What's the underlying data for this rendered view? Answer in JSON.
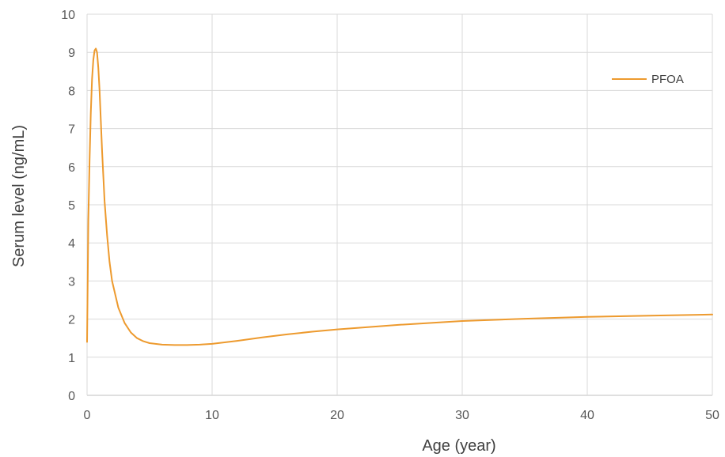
{
  "chart_data": {
    "type": "line",
    "xlabel": "Age (year)",
    "ylabel": "Serum level (ng/mL)",
    "xlim": [
      0,
      50
    ],
    "ylim": [
      0,
      10
    ],
    "x_ticks": [
      "0",
      "10",
      "20",
      "30",
      "40",
      "50"
    ],
    "y_ticks": [
      "0",
      "1",
      "2",
      "3",
      "4",
      "5",
      "6",
      "7",
      "8",
      "9",
      "10"
    ],
    "grid": true,
    "legend_position": "top-right",
    "series": [
      {
        "name": "PFOA",
        "color": "#ED9A2E",
        "x": [
          0,
          0.05,
          0.1,
          0.2,
          0.3,
          0.4,
          0.5,
          0.6,
          0.7,
          0.8,
          0.9,
          1.0,
          1.1,
          1.2,
          1.4,
          1.6,
          1.8,
          2.0,
          2.5,
          3.0,
          3.5,
          4.0,
          4.5,
          5.0,
          6.0,
          7.0,
          8.0,
          9.0,
          10,
          12,
          14,
          16,
          18,
          20,
          25,
          30,
          35,
          40,
          45,
          50
        ],
        "y": [
          1.4,
          3.0,
          4.6,
          6.2,
          7.4,
          8.3,
          8.8,
          9.05,
          9.1,
          9.0,
          8.6,
          8.0,
          7.2,
          6.4,
          5.1,
          4.2,
          3.5,
          3.0,
          2.3,
          1.9,
          1.65,
          1.5,
          1.42,
          1.37,
          1.33,
          1.32,
          1.32,
          1.33,
          1.35,
          1.43,
          1.52,
          1.6,
          1.67,
          1.73,
          1.85,
          1.95,
          2.01,
          2.06,
          2.09,
          2.12
        ]
      }
    ]
  }
}
